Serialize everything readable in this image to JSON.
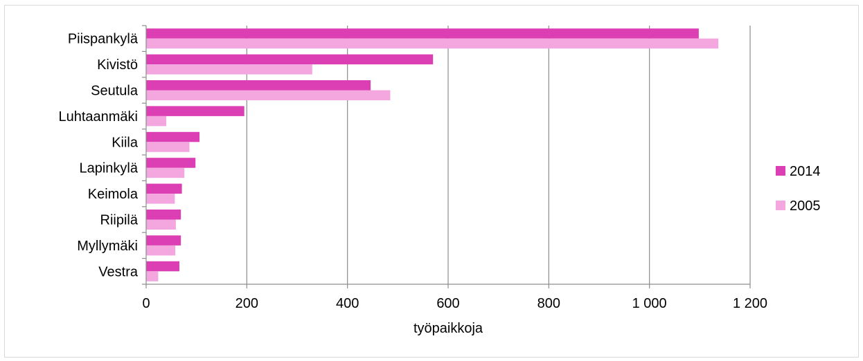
{
  "chart_data": {
    "type": "bar",
    "orientation": "horizontal",
    "categories": [
      "Piispankylä",
      "Kivistö",
      "Seutula",
      "Luhtaanmäki",
      "Kiila",
      "Lapinkylä",
      "Keimola",
      "Riipilä",
      "Myllymäki",
      "Vestra"
    ],
    "series": [
      {
        "name": "2014",
        "color": "#dc3eb4",
        "values": [
          1098,
          570,
          446,
          195,
          106,
          98,
          71,
          69,
          69,
          66
        ]
      },
      {
        "name": "2005",
        "color": "#f4a6df",
        "values": [
          1137,
          330,
          485,
          40,
          86,
          76,
          57,
          59,
          58,
          24
        ]
      }
    ],
    "xlim": [
      0,
      1200
    ],
    "xticks": [
      0,
      200,
      400,
      600,
      800,
      1000,
      1200
    ],
    "xtick_labels": [
      "0",
      "200",
      "400",
      "600",
      "800",
      "1 000",
      "1 200"
    ],
    "xlabel": "työpaikkoja",
    "ylabel": "",
    "grid": "vertical",
    "legend_position": "right"
  }
}
